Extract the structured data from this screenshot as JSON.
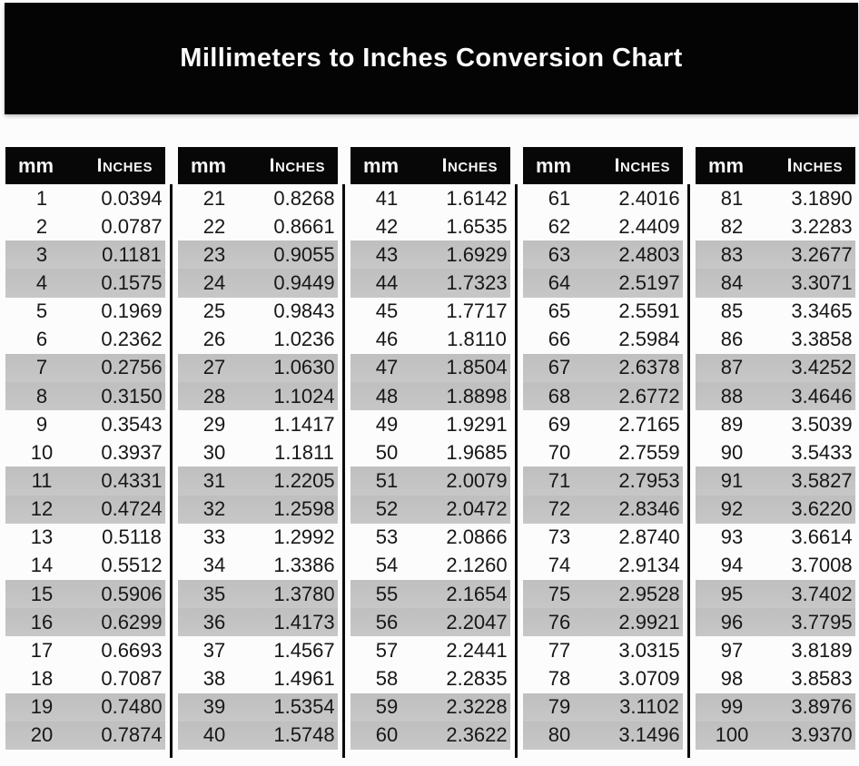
{
  "title_banner": {
    "title": "Millimeters to Inches Conversion Chart"
  },
  "colors": {
    "banner_bg": "#040404",
    "header_bg": "#070707",
    "stripe_gray": "#c3c3c3",
    "separator_line": "#0a0a0a",
    "text": "#171717",
    "header_text": "#f5f5f5"
  },
  "chart_data": {
    "type": "table",
    "title": "Millimeters to Inches Conversion Chart",
    "column_headers": [
      "mm",
      "Inches"
    ],
    "layout": "5 side-by-side column groups of 20 rows; rows shaded gray in alternating pairs",
    "groups": [
      [
        [
          "1",
          "0.0394"
        ],
        [
          "2",
          "0.0787"
        ],
        [
          "3",
          "0.1181"
        ],
        [
          "4",
          "0.1575"
        ],
        [
          "5",
          "0.1969"
        ],
        [
          "6",
          "0.2362"
        ],
        [
          "7",
          "0.2756"
        ],
        [
          "8",
          "0.3150"
        ],
        [
          "9",
          "0.3543"
        ],
        [
          "10",
          "0.3937"
        ],
        [
          "11",
          "0.4331"
        ],
        [
          "12",
          "0.4724"
        ],
        [
          "13",
          "0.5118"
        ],
        [
          "14",
          "0.5512"
        ],
        [
          "15",
          "0.5906"
        ],
        [
          "16",
          "0.6299"
        ],
        [
          "17",
          "0.6693"
        ],
        [
          "18",
          "0.7087"
        ],
        [
          "19",
          "0.7480"
        ],
        [
          "20",
          "0.7874"
        ]
      ],
      [
        [
          "21",
          "0.8268"
        ],
        [
          "22",
          "0.8661"
        ],
        [
          "23",
          "0.9055"
        ],
        [
          "24",
          "0.9449"
        ],
        [
          "25",
          "0.9843"
        ],
        [
          "26",
          "1.0236"
        ],
        [
          "27",
          "1.0630"
        ],
        [
          "28",
          "1.1024"
        ],
        [
          "29",
          "1.1417"
        ],
        [
          "30",
          "1.1811"
        ],
        [
          "31",
          "1.2205"
        ],
        [
          "32",
          "1.2598"
        ],
        [
          "33",
          "1.2992"
        ],
        [
          "34",
          "1.3386"
        ],
        [
          "35",
          "1.3780"
        ],
        [
          "36",
          "1.4173"
        ],
        [
          "37",
          "1.4567"
        ],
        [
          "38",
          "1.4961"
        ],
        [
          "39",
          "1.5354"
        ],
        [
          "40",
          "1.5748"
        ]
      ],
      [
        [
          "41",
          "1.6142"
        ],
        [
          "42",
          "1.6535"
        ],
        [
          "43",
          "1.6929"
        ],
        [
          "44",
          "1.7323"
        ],
        [
          "45",
          "1.7717"
        ],
        [
          "46",
          "1.8110"
        ],
        [
          "47",
          "1.8504"
        ],
        [
          "48",
          "1.8898"
        ],
        [
          "49",
          "1.9291"
        ],
        [
          "50",
          "1.9685"
        ],
        [
          "51",
          "2.0079"
        ],
        [
          "52",
          "2.0472"
        ],
        [
          "53",
          "2.0866"
        ],
        [
          "54",
          "2.1260"
        ],
        [
          "55",
          "2.1654"
        ],
        [
          "56",
          "2.2047"
        ],
        [
          "57",
          "2.2441"
        ],
        [
          "58",
          "2.2835"
        ],
        [
          "59",
          "2.3228"
        ],
        [
          "60",
          "2.3622"
        ]
      ],
      [
        [
          "61",
          "2.4016"
        ],
        [
          "62",
          "2.4409"
        ],
        [
          "63",
          "2.4803"
        ],
        [
          "64",
          "2.5197"
        ],
        [
          "65",
          "2.5591"
        ],
        [
          "66",
          "2.5984"
        ],
        [
          "67",
          "2.6378"
        ],
        [
          "68",
          "2.6772"
        ],
        [
          "69",
          "2.7165"
        ],
        [
          "70",
          "2.7559"
        ],
        [
          "71",
          "2.7953"
        ],
        [
          "72",
          "2.8346"
        ],
        [
          "73",
          "2.8740"
        ],
        [
          "74",
          "2.9134"
        ],
        [
          "75",
          "2.9528"
        ],
        [
          "76",
          "2.9921"
        ],
        [
          "77",
          "3.0315"
        ],
        [
          "78",
          "3.0709"
        ],
        [
          "79",
          "3.1102"
        ],
        [
          "80",
          "3.1496"
        ]
      ],
      [
        [
          "81",
          "3.1890"
        ],
        [
          "82",
          "3.2283"
        ],
        [
          "83",
          "3.2677"
        ],
        [
          "84",
          "3.3071"
        ],
        [
          "85",
          "3.3465"
        ],
        [
          "86",
          "3.3858"
        ],
        [
          "87",
          "3.4252"
        ],
        [
          "88",
          "3.4646"
        ],
        [
          "89",
          "3.5039"
        ],
        [
          "90",
          "3.5433"
        ],
        [
          "91",
          "3.5827"
        ],
        [
          "92",
          "3.6220"
        ],
        [
          "93",
          "3.6614"
        ],
        [
          "94",
          "3.7008"
        ],
        [
          "95",
          "3.7402"
        ],
        [
          "96",
          "3.7795"
        ],
        [
          "97",
          "3.8189"
        ],
        [
          "98",
          "3.8583"
        ],
        [
          "99",
          "3.8976"
        ],
        [
          "100",
          "3.9370"
        ]
      ]
    ]
  }
}
